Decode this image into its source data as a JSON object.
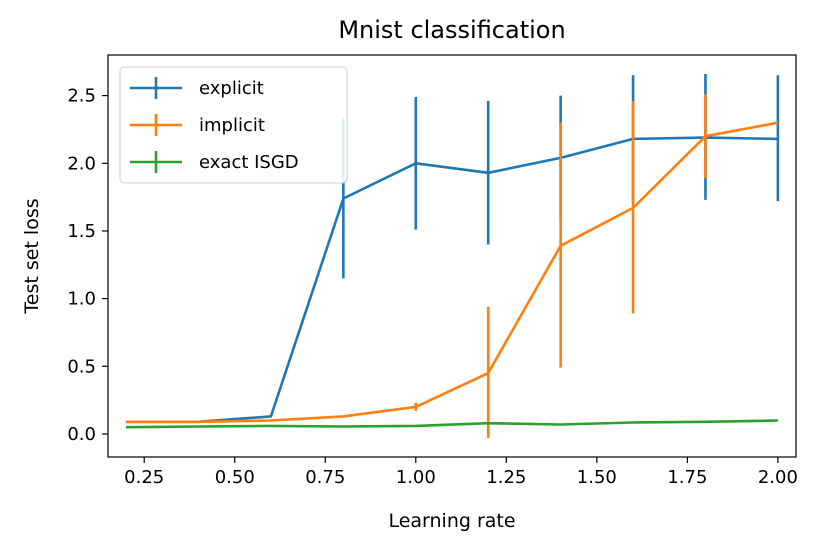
{
  "chart_data": {
    "type": "line",
    "title": "Mnist classification",
    "xlabel": "Learning rate",
    "ylabel": "Test set loss",
    "xlim": [
      0.15,
      2.05
    ],
    "ylim": [
      -0.17,
      2.8
    ],
    "xticks": [
      {
        "value": 0.25,
        "label": "0.25"
      },
      {
        "value": 0.5,
        "label": "0.50"
      },
      {
        "value": 0.75,
        "label": "0.75"
      },
      {
        "value": 1.0,
        "label": "1.00"
      },
      {
        "value": 1.25,
        "label": "1.25"
      },
      {
        "value": 1.5,
        "label": "1.50"
      },
      {
        "value": 1.75,
        "label": "1.75"
      },
      {
        "value": 2.0,
        "label": "2.00"
      }
    ],
    "yticks": [
      {
        "value": 0.0,
        "label": "0.0"
      },
      {
        "value": 0.5,
        "label": "0.5"
      },
      {
        "value": 1.0,
        "label": "1.0"
      },
      {
        "value": 1.5,
        "label": "1.5"
      },
      {
        "value": 2.0,
        "label": "2.0"
      },
      {
        "value": 2.5,
        "label": "2.5"
      }
    ],
    "grid": false,
    "legend_position": "top-left",
    "x": [
      0.2,
      0.4,
      0.6,
      0.8,
      1.0,
      1.2,
      1.4,
      1.6,
      1.8,
      2.0
    ],
    "series": [
      {
        "name": "explicit",
        "color": "#1f77b4",
        "values": [
          0.09,
          0.09,
          0.13,
          1.74,
          2.0,
          1.93,
          2.04,
          2.18,
          2.19,
          2.18
        ],
        "err_low": [
          null,
          null,
          null,
          1.15,
          1.51,
          1.4,
          1.59,
          1.71,
          1.73,
          1.72
        ],
        "err_high": [
          null,
          null,
          null,
          2.33,
          2.49,
          2.46,
          2.5,
          2.65,
          2.66,
          2.65
        ]
      },
      {
        "name": "implicit",
        "color": "#ff7f0e",
        "values": [
          0.09,
          0.09,
          0.1,
          0.13,
          0.2,
          0.45,
          1.39,
          1.67,
          2.2,
          2.3
        ],
        "err_low": [
          null,
          null,
          null,
          null,
          0.17,
          -0.03,
          0.49,
          0.89,
          1.89,
          null
        ],
        "err_high": [
          null,
          null,
          null,
          null,
          0.23,
          0.94,
          2.3,
          2.46,
          2.51,
          null
        ]
      },
      {
        "name": "exact ISGD",
        "color": "#2ca02c",
        "values": [
          0.05,
          0.055,
          0.06,
          0.055,
          0.06,
          0.08,
          0.07,
          0.085,
          0.09,
          0.1
        ],
        "err_low": [
          null,
          null,
          null,
          null,
          null,
          null,
          null,
          null,
          null,
          null
        ],
        "err_high": [
          null,
          null,
          null,
          null,
          null,
          null,
          null,
          null,
          null,
          null
        ]
      }
    ]
  }
}
